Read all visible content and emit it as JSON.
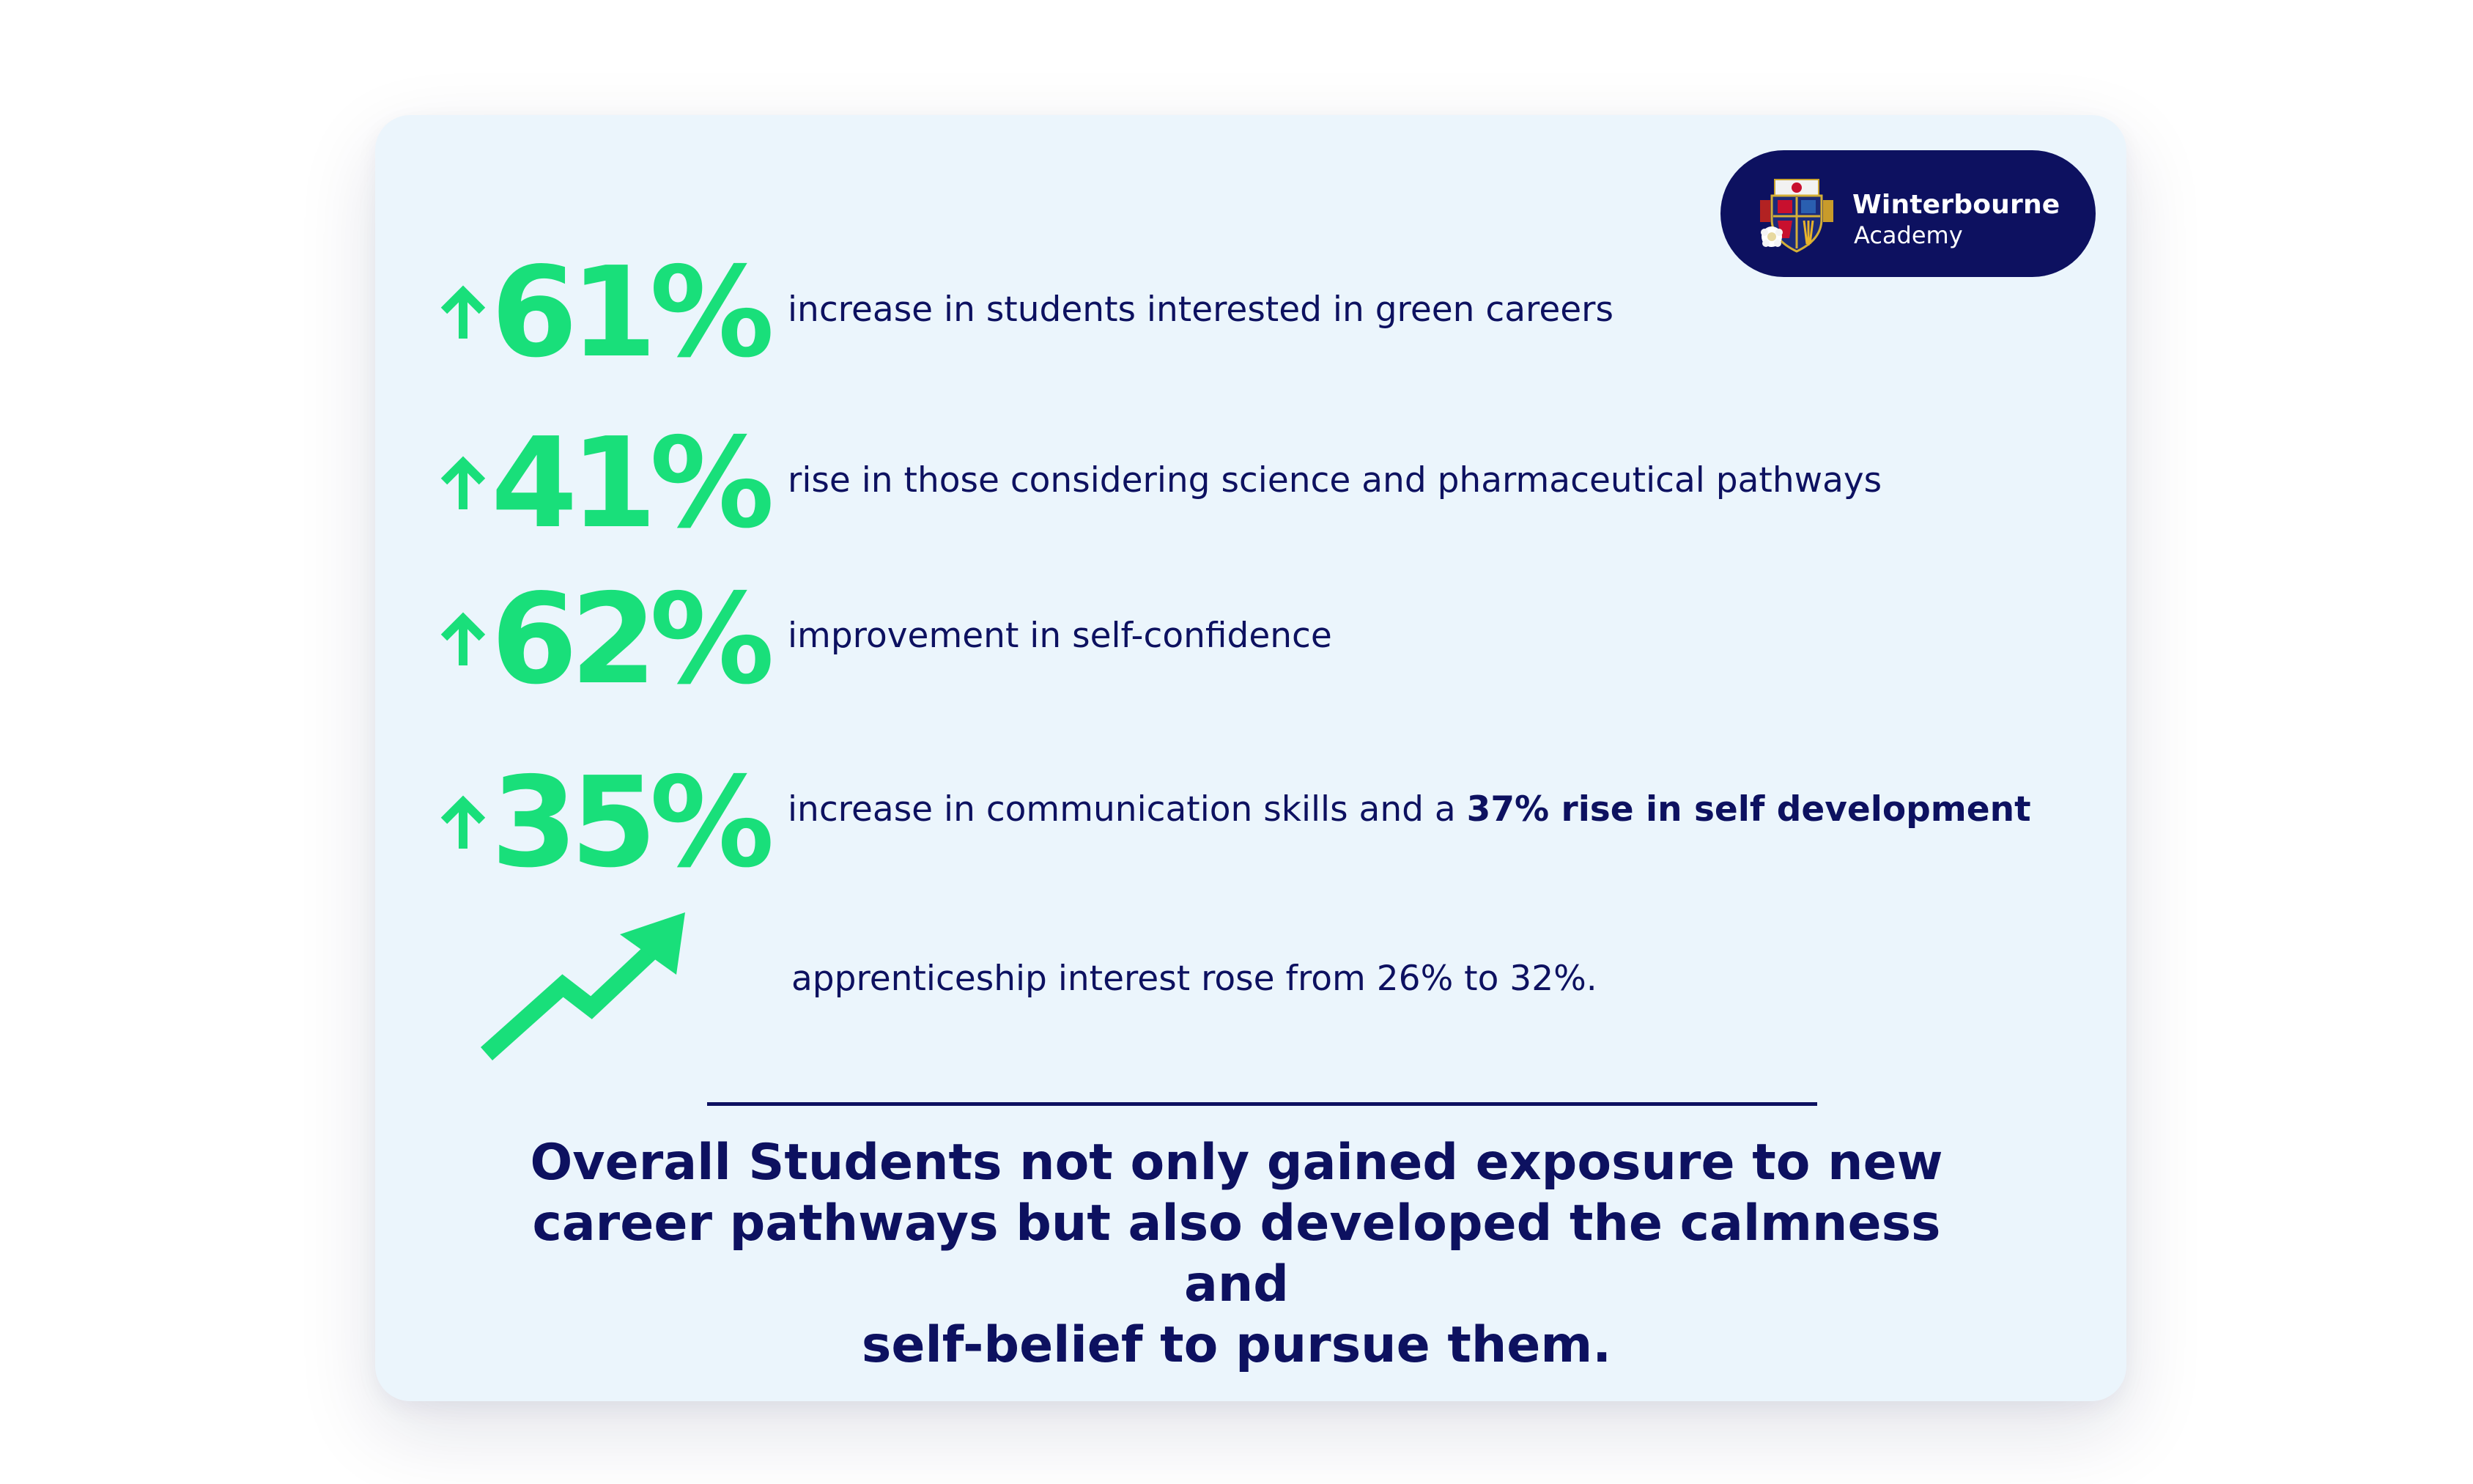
{
  "colors": {
    "navy": "#0d1160",
    "green": "#19df7a",
    "card_background": "#ebf5fc",
    "page_background": "#ffffff"
  },
  "logo": {
    "name": "Winterbourne",
    "subtitle": "Academy",
    "icon": "school-crest-icon"
  },
  "stats": [
    {
      "icon": "arrow-up-icon",
      "value": "61%",
      "description": "increase in students interested in green careers"
    },
    {
      "icon": "arrow-up-icon",
      "value": "41%",
      "description": "rise in those considering science and pharmaceutical pathways"
    },
    {
      "icon": "arrow-up-icon",
      "value": "62%",
      "description": "improvement in self-confidence"
    },
    {
      "icon": "arrow-up-icon",
      "value": "35%",
      "description": "increase in communication skills and a ",
      "description_bold": "37% rise in self development"
    }
  ],
  "trend": {
    "icon": "trending-up-icon",
    "description": "apprenticeship interest rose from 26% to 32%."
  },
  "conclusion": {
    "line1": "Overall Students not only gained exposure to new",
    "line2": "career pathways but also developed the calmness and",
    "line3": "self-belief to pursue them."
  }
}
